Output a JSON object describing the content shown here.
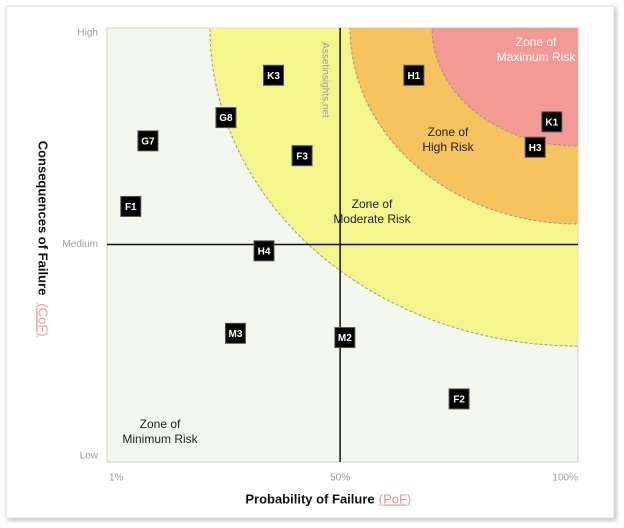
{
  "chart_data": {
    "type": "scatter",
    "x_label": "Probability of Failure",
    "x_label_abbr": "(PoF)",
    "y_label": "Consequences of Failure",
    "y_label_abbr": "(CoF)",
    "watermark": "Assetinsights.net",
    "zones": [
      "Zone of Maximum Risk",
      "Zone of High Risk",
      "Zone of Moderate Risk",
      "Zone of Minimum Risk"
    ],
    "xlim": [
      1,
      100
    ],
    "xticks": [
      {
        "value": 1,
        "label": "1%"
      },
      {
        "value": 50,
        "label": "50%"
      },
      {
        "value": 100,
        "label": "100%"
      }
    ],
    "ylim": [
      0,
      100
    ],
    "yticks": [
      {
        "value": 0,
        "label": "Low"
      },
      {
        "value": 50,
        "label": "Medium"
      },
      {
        "value": 100,
        "label": "High"
      }
    ],
    "point_labels": [
      "K3",
      "H1",
      "G8",
      "K1",
      "G7",
      "H3",
      "F3",
      "F1",
      "H4",
      "M3",
      "M2",
      "F2"
    ],
    "x": [
      36,
      65.5,
      26,
      94.5,
      9.6,
      91,
      42,
      6,
      34,
      28,
      51,
      75
    ],
    "values": [
      90,
      90,
      80,
      79,
      74.5,
      73,
      71,
      59,
      48.5,
      29,
      28,
      13.5
    ],
    "color": "#000000"
  }
}
